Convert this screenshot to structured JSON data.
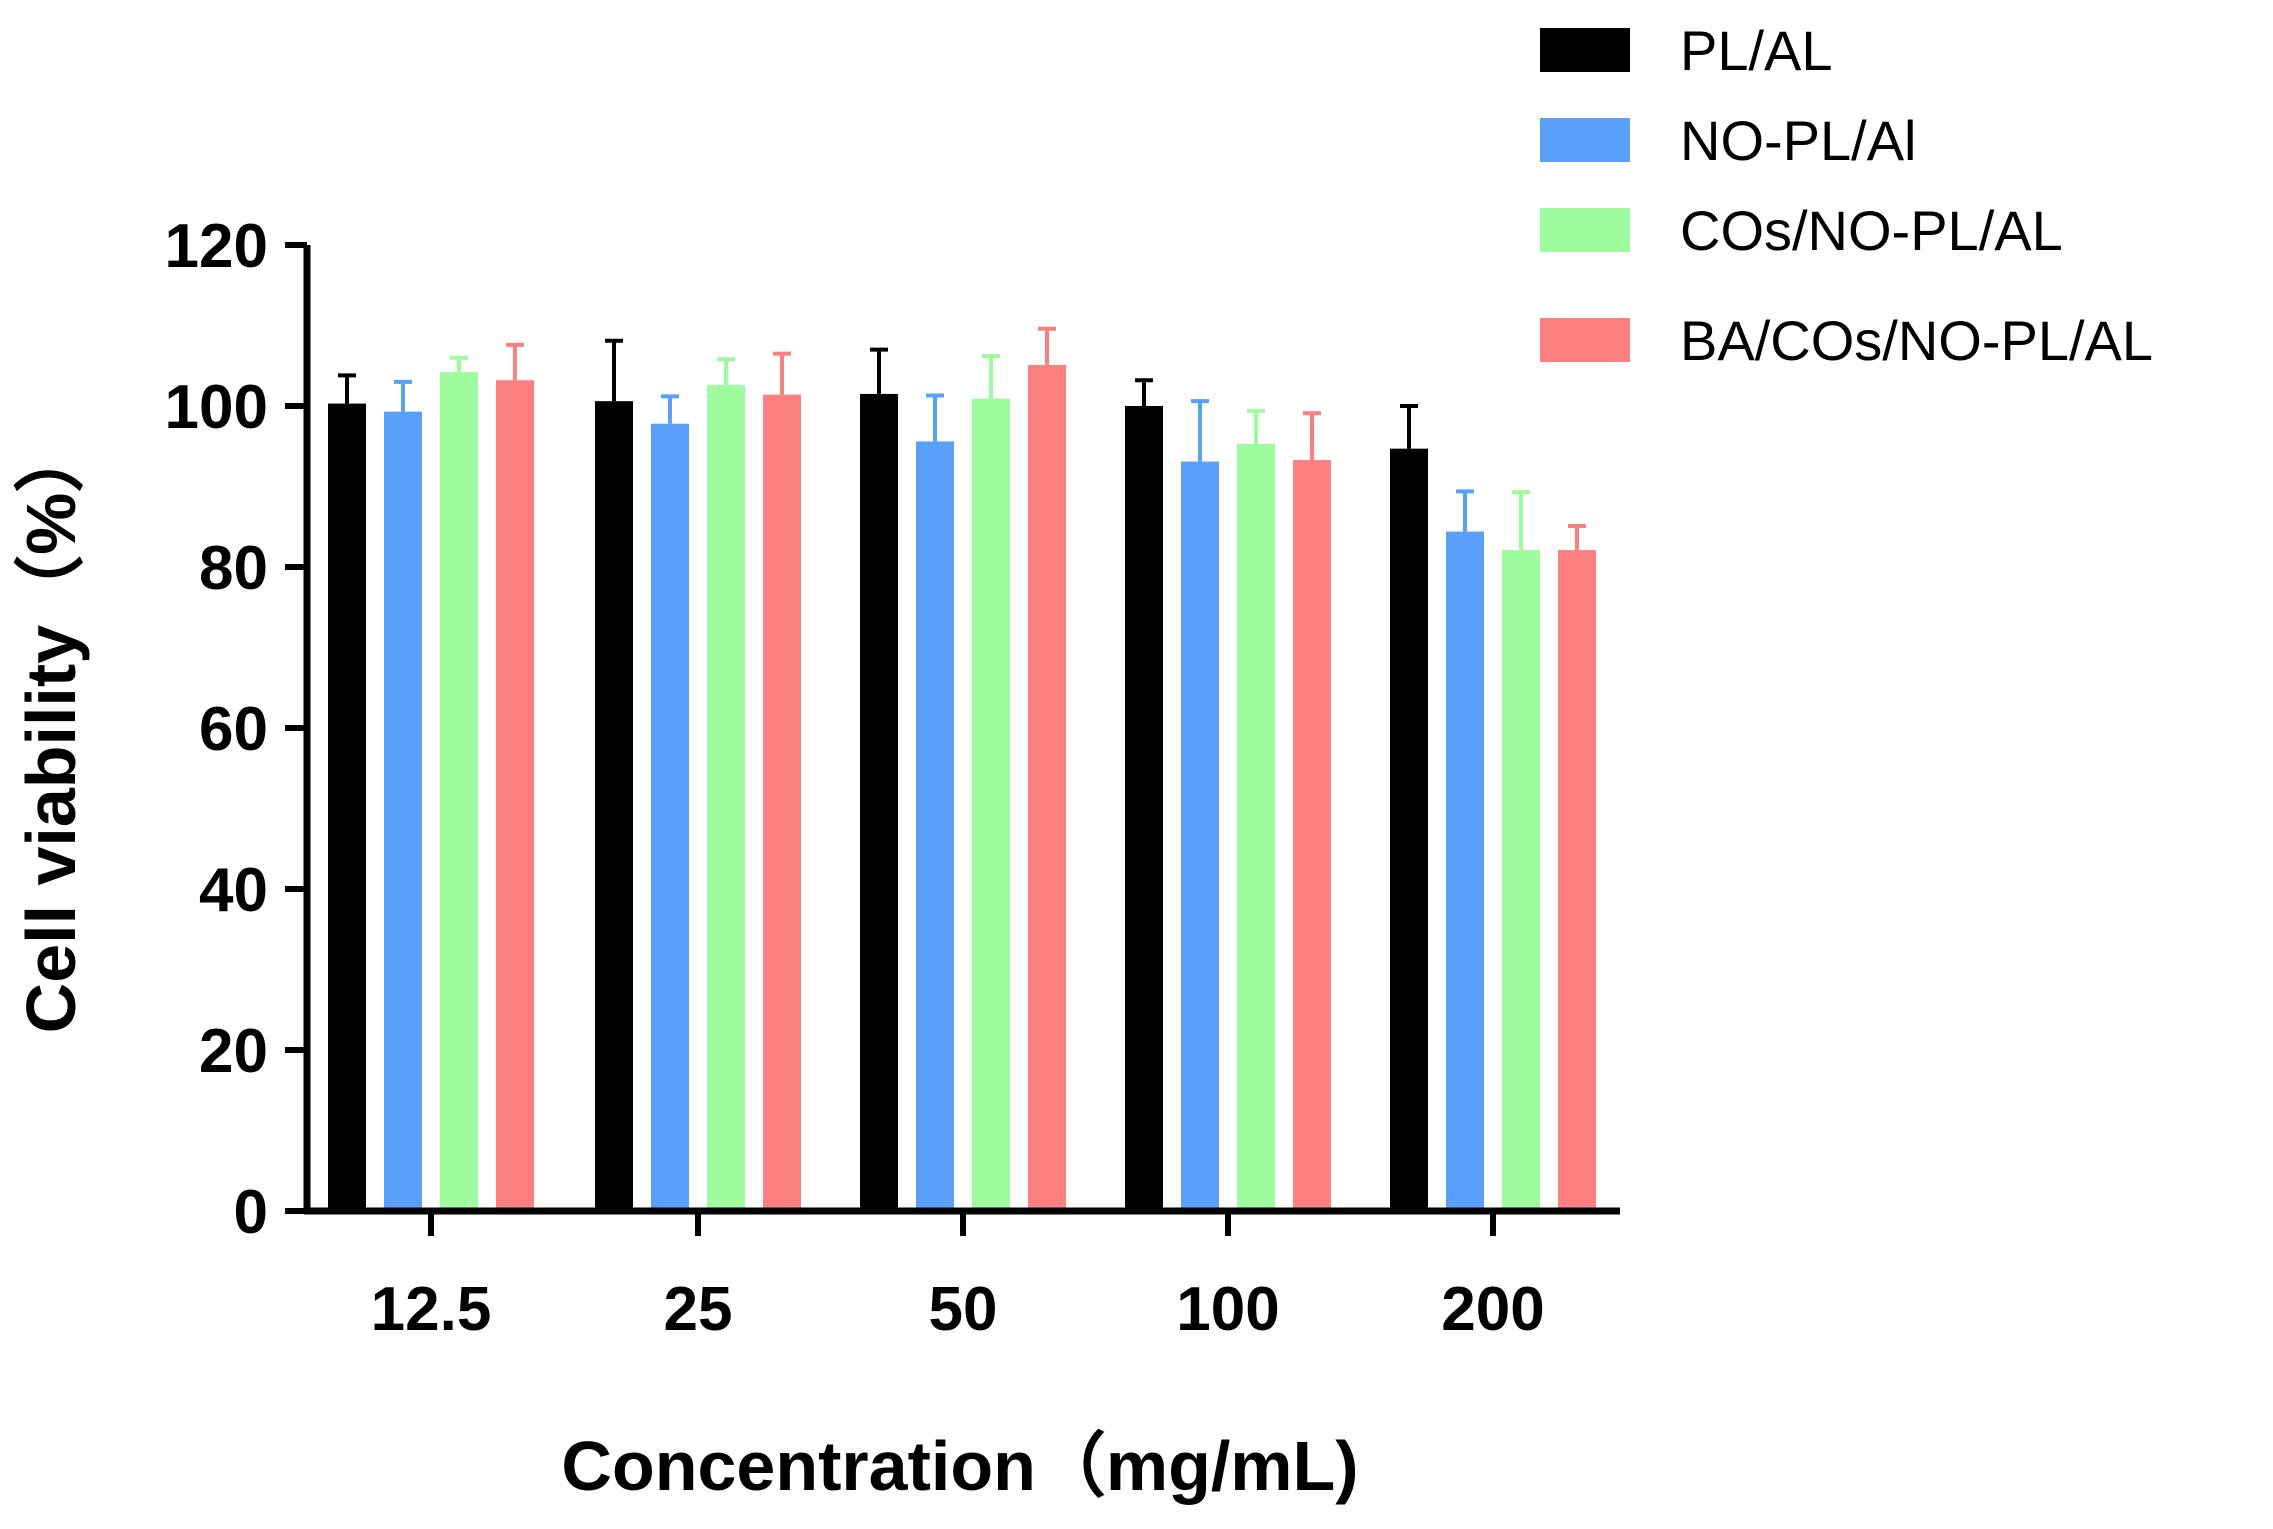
{
  "chart_data": {
    "type": "bar",
    "title": "",
    "xlabel": "Concentration（mg/mL)",
    "ylabel": "Cell viability（%）",
    "ylim": [
      0,
      120
    ],
    "yticks": [
      "0",
      "20",
      "40",
      "60",
      "80",
      "100",
      "120"
    ],
    "categories": [
      "12.5",
      "25",
      "50",
      "100",
      "200"
    ],
    "legend_position": "top-right",
    "grid": false,
    "series": [
      {
        "name": "PL/AL",
        "color": "#000000",
        "values": [
          100.3,
          100.6,
          101.5,
          100.0,
          94.7
        ],
        "errors": [
          3.5,
          7.5,
          5.5,
          3.2,
          5.3
        ]
      },
      {
        "name": "NO-PL/Al",
        "color": "#5aa0fa",
        "values": [
          99.3,
          97.8,
          95.6,
          93.1,
          84.4
        ],
        "errors": [
          3.7,
          3.4,
          5.7,
          7.5,
          5.0
        ]
      },
      {
        "name": "COs/NO-PL/AL",
        "color": "#9efc9e",
        "values": [
          104.2,
          102.6,
          100.9,
          95.3,
          82.1
        ],
        "errors": [
          1.8,
          3.2,
          5.3,
          4.1,
          7.2
        ]
      },
      {
        "name": "BA/COs/NO-PL/AL",
        "color": "#fc8080",
        "values": [
          103.2,
          101.4,
          105.1,
          93.3,
          82.1
        ],
        "errors": [
          4.4,
          5.1,
          4.5,
          5.8,
          3.0
        ]
      }
    ]
  }
}
